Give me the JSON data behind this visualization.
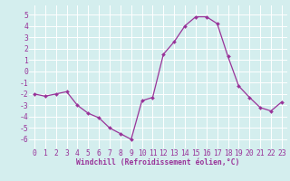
{
  "x": [
    0,
    1,
    2,
    3,
    4,
    5,
    6,
    7,
    8,
    9,
    10,
    11,
    12,
    13,
    14,
    15,
    16,
    17,
    18,
    19,
    20,
    21,
    22,
    23
  ],
  "y": [
    -2,
    -2.2,
    -2,
    -1.8,
    -3,
    -3.7,
    -4.1,
    -5,
    -5.5,
    -6,
    -2.6,
    -2.3,
    1.5,
    2.6,
    4.0,
    4.8,
    4.8,
    4.2,
    1.3,
    -1.3,
    -2.3,
    -3.2,
    -3.5,
    -2.7
  ],
  "line_color": "#993399",
  "marker": "D",
  "marker_size": 2.0,
  "line_width": 0.9,
  "xlabel": "Windchill (Refroidissement éolien,°C)",
  "xlabel_fontsize": 5.8,
  "ylim": [
    -6.8,
    5.8
  ],
  "xlim": [
    -0.5,
    23.5
  ],
  "bg_color": "#d4eeee",
  "grid_color": "#ffffff",
  "tick_color": "#993399",
  "tick_fontsize": 5.8
}
